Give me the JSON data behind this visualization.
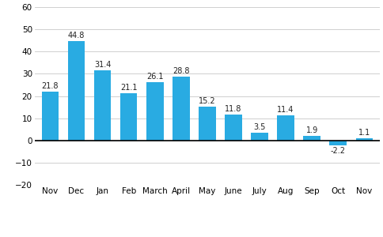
{
  "categories": [
    "Nov",
    "Dec",
    "Jan",
    "Feb",
    "March",
    "April",
    "May",
    "June",
    "July",
    "Aug",
    "Sep",
    "Oct",
    "Nov"
  ],
  "values": [
    21.8,
    44.8,
    31.4,
    21.1,
    26.1,
    28.8,
    15.2,
    11.8,
    3.5,
    11.4,
    1.9,
    -2.2,
    1.1
  ],
  "bar_color": "#29abe2",
  "ylim": [
    -20,
    60
  ],
  "yticks": [
    -20,
    -10,
    0,
    10,
    20,
    30,
    40,
    50,
    60
  ],
  "label_fontsize": 7.5,
  "value_fontsize": 7.0,
  "axis_fontsize": 7.5,
  "background_color": "#ffffff",
  "grid_color": "#c8c8c8"
}
